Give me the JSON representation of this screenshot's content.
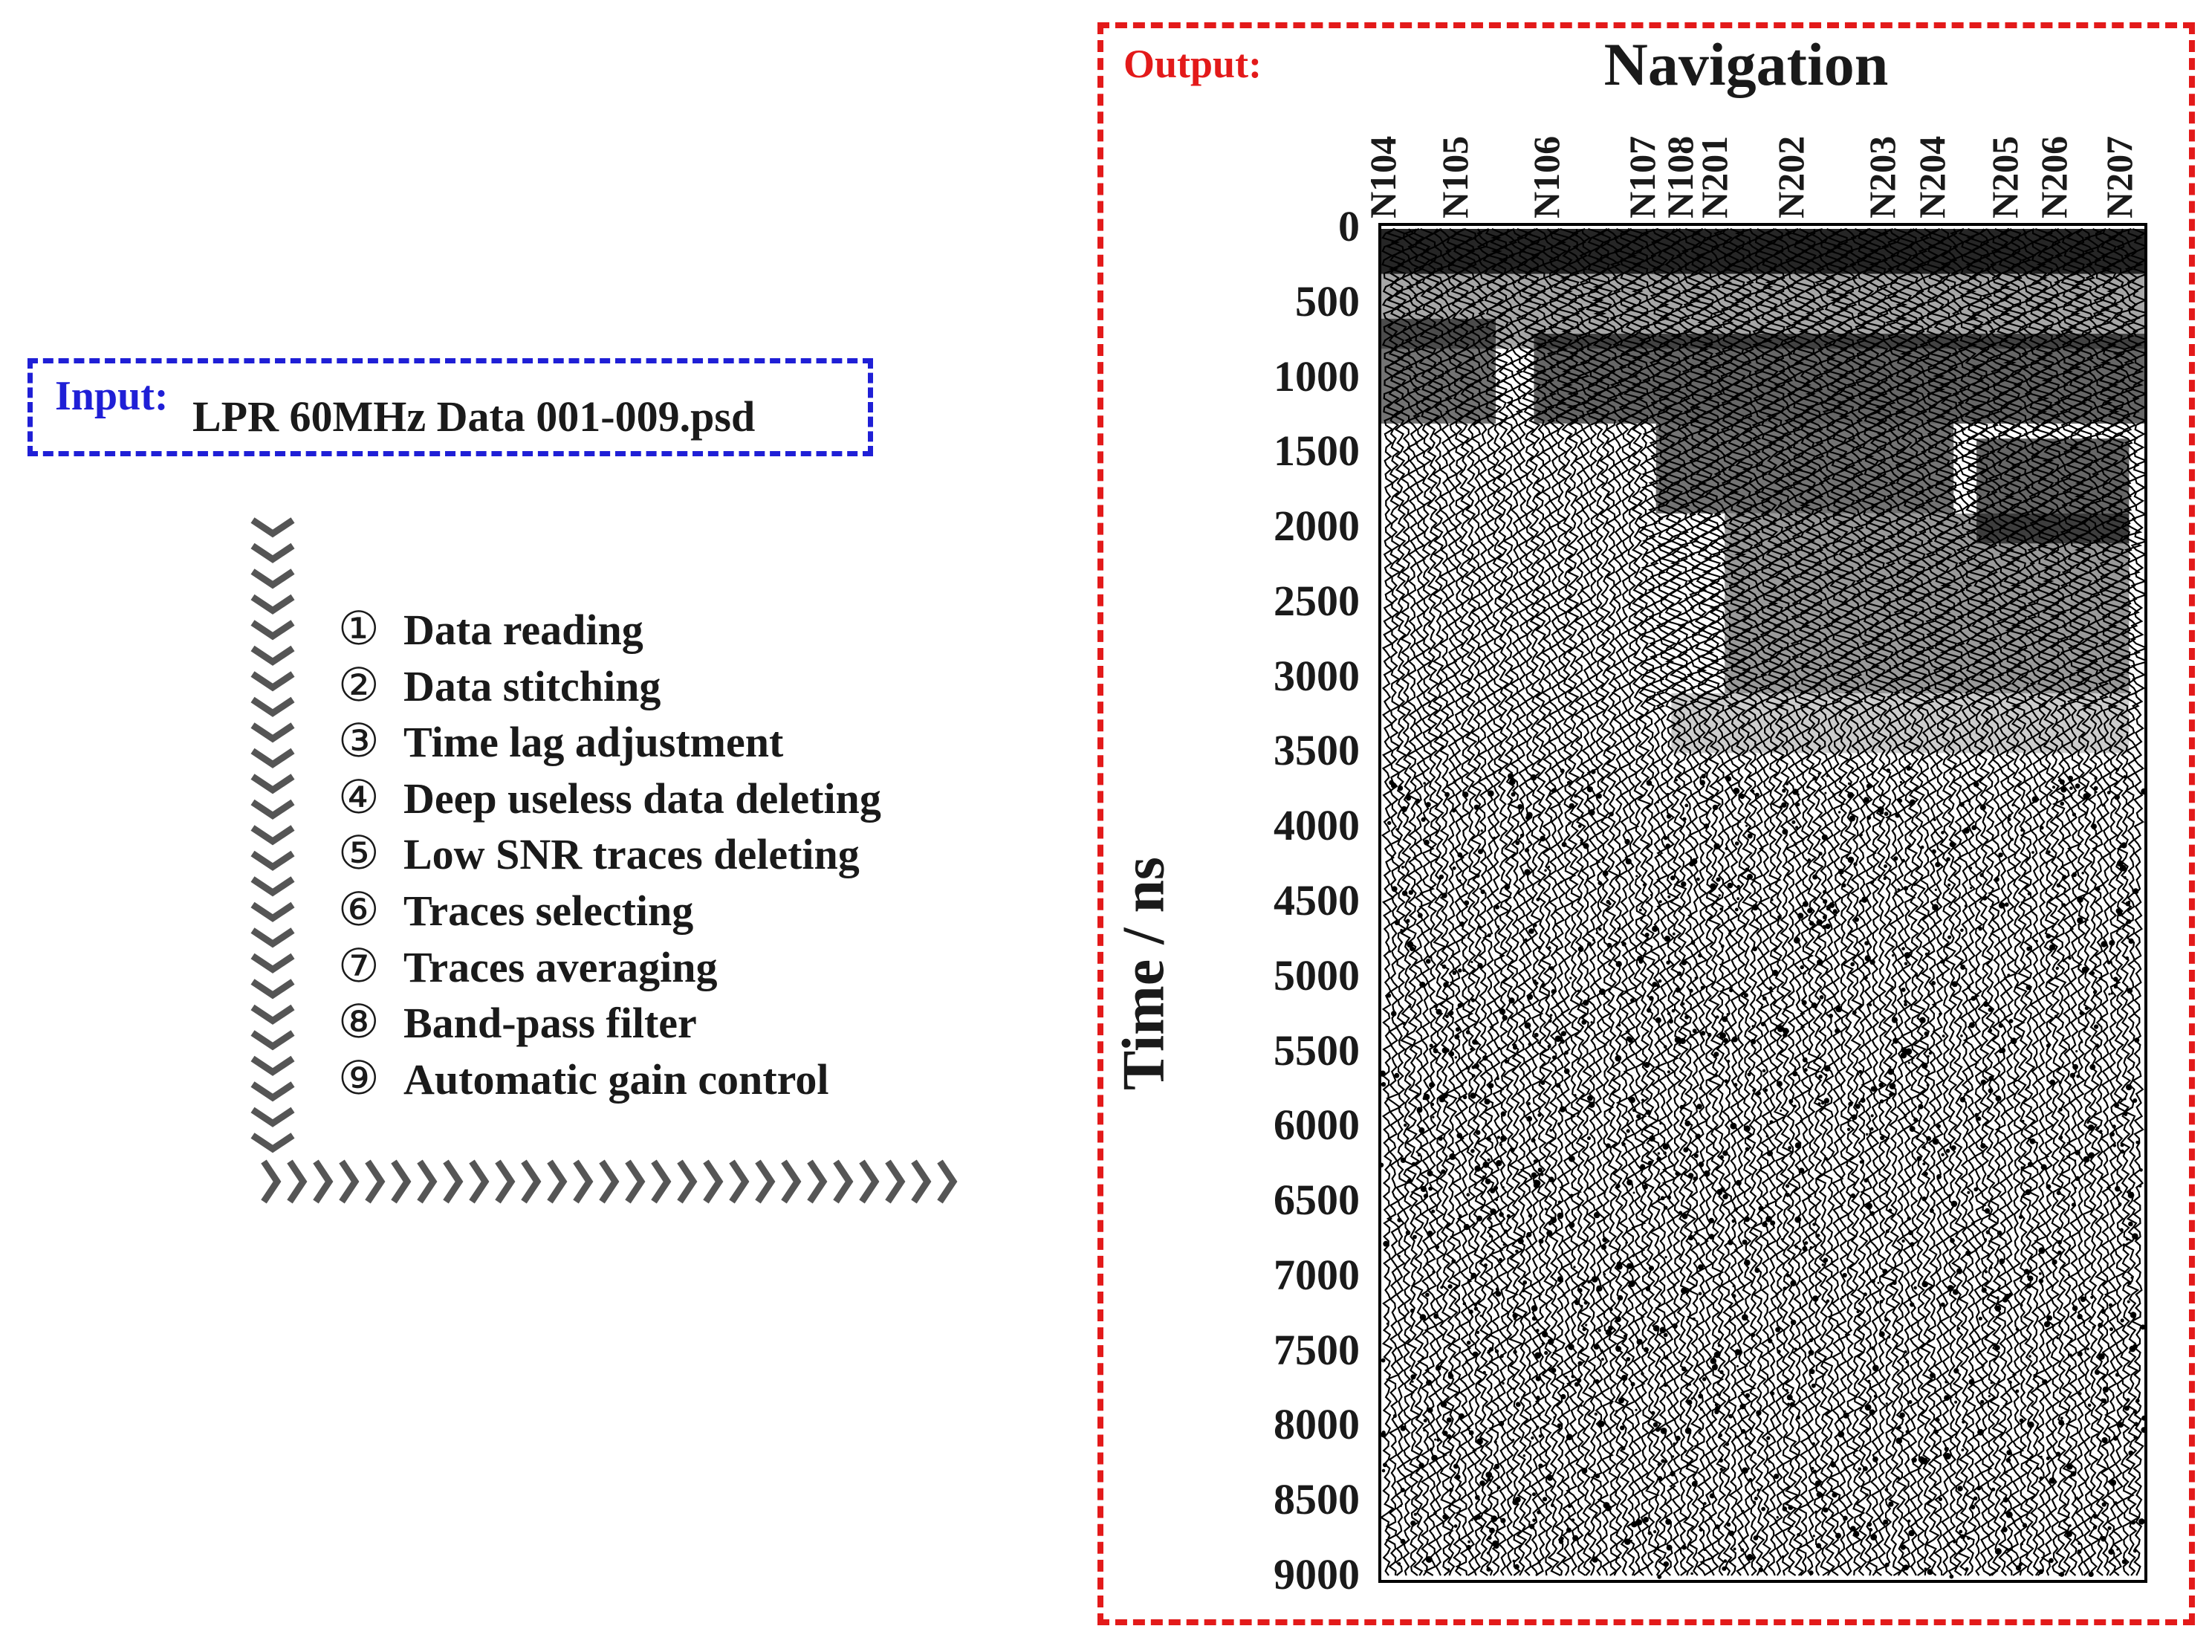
{
  "input": {
    "label": "Input:",
    "file": "LPR 60MHz Data 001-009.psd"
  },
  "steps": [
    {
      "num": "①",
      "text": "Data reading"
    },
    {
      "num": "②",
      "text": "Data stitching"
    },
    {
      "num": "③",
      "text": "Time lag adjustment"
    },
    {
      "num": "④",
      "text": "Deep useless data deleting"
    },
    {
      "num": "⑤",
      "text": "Low SNR traces deleting"
    },
    {
      "num": "⑥",
      "text": "Traces selecting"
    },
    {
      "num": "⑦",
      "text": "Traces averaging"
    },
    {
      "num": "⑧",
      "text": "Band-pass filter"
    },
    {
      "num": "⑨",
      "text": "Automatic gain control"
    }
  ],
  "output": {
    "label": "Output:",
    "title": "Navigation"
  },
  "colors": {
    "input_border": "#1f1fd6",
    "output_border": "#e31a1a",
    "arrow": "#555555"
  },
  "chart_data": {
    "type": "radargram",
    "top_label": "Navigation",
    "ylabel": "Time / ns",
    "ylim": [
      0,
      9000
    ],
    "yticks": [
      0,
      500,
      1000,
      1500,
      2000,
      2500,
      3000,
      3500,
      4000,
      4500,
      5000,
      5500,
      6000,
      6500,
      7000,
      7500,
      8000,
      8500,
      9000
    ],
    "traces": [
      {
        "name": "N104",
        "pos": 0.02
      },
      {
        "name": "N105",
        "pos": 0.115
      },
      {
        "name": "N106",
        "pos": 0.235
      },
      {
        "name": "N107",
        "pos": 0.36
      },
      {
        "name": "N108",
        "pos": 0.41
      },
      {
        "name": "N201",
        "pos": 0.455
      },
      {
        "name": "N202",
        "pos": 0.555
      },
      {
        "name": "N203",
        "pos": 0.675
      },
      {
        "name": "N204",
        "pos": 0.74
      },
      {
        "name": "N205",
        "pos": 0.835
      },
      {
        "name": "N206",
        "pos": 0.9
      },
      {
        "name": "N207",
        "pos": 0.985
      }
    ]
  }
}
